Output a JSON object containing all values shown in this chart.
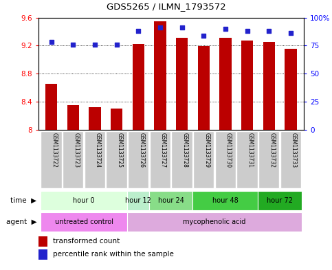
{
  "title": "GDS5265 / ILMN_1793572",
  "samples": [
    "GSM1133722",
    "GSM1133723",
    "GSM1133724",
    "GSM1133725",
    "GSM1133726",
    "GSM1133727",
    "GSM1133728",
    "GSM1133729",
    "GSM1133730",
    "GSM1133731",
    "GSM1133732",
    "GSM1133733"
  ],
  "transformed_counts": [
    8.65,
    8.35,
    8.32,
    8.3,
    9.22,
    9.55,
    9.31,
    9.19,
    9.31,
    9.27,
    9.25,
    9.15
  ],
  "percentile_ranks": [
    78,
    76,
    76,
    76,
    88,
    91,
    91,
    84,
    90,
    88,
    88,
    86
  ],
  "ylim_left": [
    8.0,
    9.6
  ],
  "ylim_right": [
    0,
    100
  ],
  "yticks_left": [
    8.0,
    8.4,
    8.8,
    9.2,
    9.6
  ],
  "yticks_right": [
    0,
    25,
    50,
    75,
    100
  ],
  "ytick_labels_left": [
    "8",
    "8.4",
    "8.8",
    "9.2",
    "9.6"
  ],
  "ytick_labels_right": [
    "0",
    "25",
    "50",
    "75",
    "100%"
  ],
  "bar_color": "#bb0000",
  "dot_color": "#2222cc",
  "bar_bottom": 8.0,
  "time_groups": [
    {
      "label": "hour 0",
      "indices": [
        0,
        1,
        2,
        3
      ],
      "color": "#ddffdd"
    },
    {
      "label": "hour 12",
      "indices": [
        4
      ],
      "color": "#bbeecc"
    },
    {
      "label": "hour 24",
      "indices": [
        5,
        6
      ],
      "color": "#88dd88"
    },
    {
      "label": "hour 48",
      "indices": [
        7,
        8,
        9
      ],
      "color": "#44cc44"
    },
    {
      "label": "hour 72",
      "indices": [
        10,
        11
      ],
      "color": "#22aa22"
    }
  ],
  "agent_groups": [
    {
      "label": "untreated control",
      "indices": [
        0,
        1,
        2,
        3
      ],
      "color": "#ee88ee"
    },
    {
      "label": "mycophenolic acid",
      "indices": [
        4,
        5,
        6,
        7,
        8,
        9,
        10,
        11
      ],
      "color": "#ddaadd"
    }
  ],
  "time_label": "time",
  "agent_label": "agent",
  "legend_bar_label": "transformed count",
  "legend_dot_label": "percentile rank within the sample",
  "sample_row_color": "#cccccc",
  "background_color": "white",
  "bar_width": 0.55
}
